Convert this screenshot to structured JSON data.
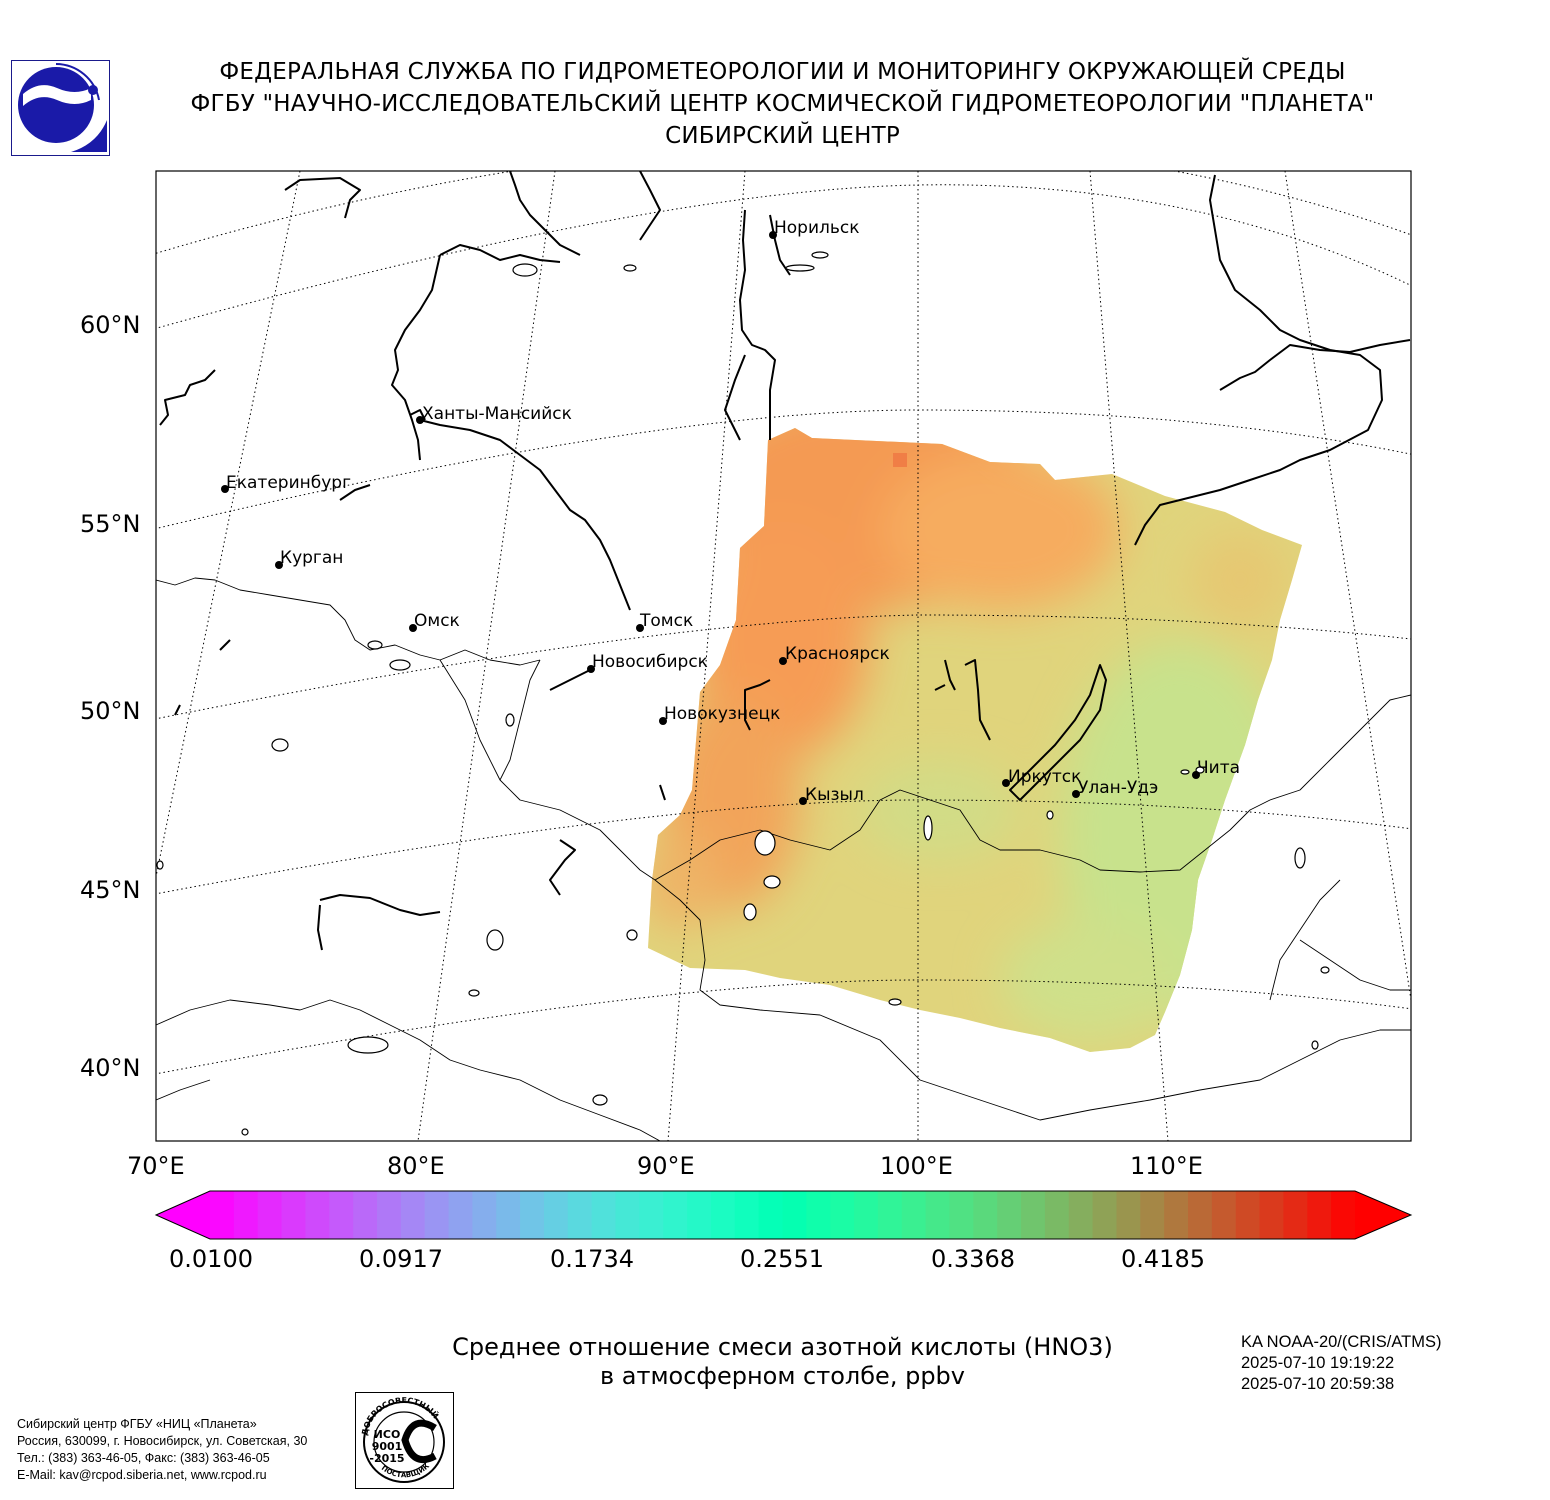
{
  "header": {
    "line1": "ФЕДЕРАЛЬНАЯ СЛУЖБА ПО ГИДРОМЕТЕОРОЛОГИИ И МОНИТОРИНГУ ОКРУЖАЮЩЕЙ СРЕДЫ",
    "line2": "ФГБУ \"НАУЧНО-ИССЛЕДОВАТЕЛЬСКИЙ ЦЕНТР КОСМИЧЕСКОЙ ГИДРОМЕТЕОРОЛОГИИ \"ПЛАНЕТА\"",
    "line3": "СИБИРСКИЙ ЦЕНТР"
  },
  "map": {
    "lat_labels": [
      "60°N",
      "55°N",
      "50°N",
      "45°N",
      "40°N"
    ],
    "lon_labels": [
      "70°E",
      "80°E",
      "90°E",
      "100°E",
      "110°E"
    ],
    "cities": [
      {
        "name": "Норильск"
      },
      {
        "name": "Ханты-Мансийск"
      },
      {
        "name": "Екатеринбург"
      },
      {
        "name": "Курган"
      },
      {
        "name": "Омск"
      },
      {
        "name": "Томск"
      },
      {
        "name": "Новосибирск"
      },
      {
        "name": "Красноярск"
      },
      {
        "name": "Новокузнецк"
      },
      {
        "name": "Кызыл"
      },
      {
        "name": "Иркутск"
      },
      {
        "name": "Улан-Удэ"
      },
      {
        "name": "Чита"
      }
    ],
    "colors": {
      "low": "#c4e28a",
      "mid": "#e2d47a",
      "high": "#f6a255",
      "peak": "#f0864a"
    }
  },
  "colorbar": {
    "ticks": [
      "0.0100",
      "0.0917",
      "0.1734",
      "0.2551",
      "0.3368",
      "0.4185"
    ],
    "min": 0.01,
    "max": 0.5002,
    "segments": 48,
    "colormap": "rainbow"
  },
  "title": {
    "line1": "Среднее отношение смеси азотной кислоты (HNO3)",
    "line2": "в атмосферном столбе, ppbv"
  },
  "satellite": {
    "name": "KA NOAA-20/(CRIS/ATMS)",
    "start": "2025-07-10 19:19:22",
    "end": "2025-07-10 20:59:38"
  },
  "footer": {
    "line1": "Сибирский центр ФГБУ «НИЦ «Планета»",
    "line2": "Россия, 630099, г. Новосибирск, ул. Советская, 30",
    "line3": "Тел.: (383) 363-46-05, Факс: (383) 363-46-05",
    "line4": "E-Mail: kav@rcpod.siberia.net, www.rcpod.ru"
  },
  "iso_stamp": {
    "top": "ДОБРОСОВЕСТНЫЙ",
    "l1": "ИСО",
    "l2": "9001",
    "l3": "-2015",
    "bottom": "ПОСТАВЩИК"
  }
}
